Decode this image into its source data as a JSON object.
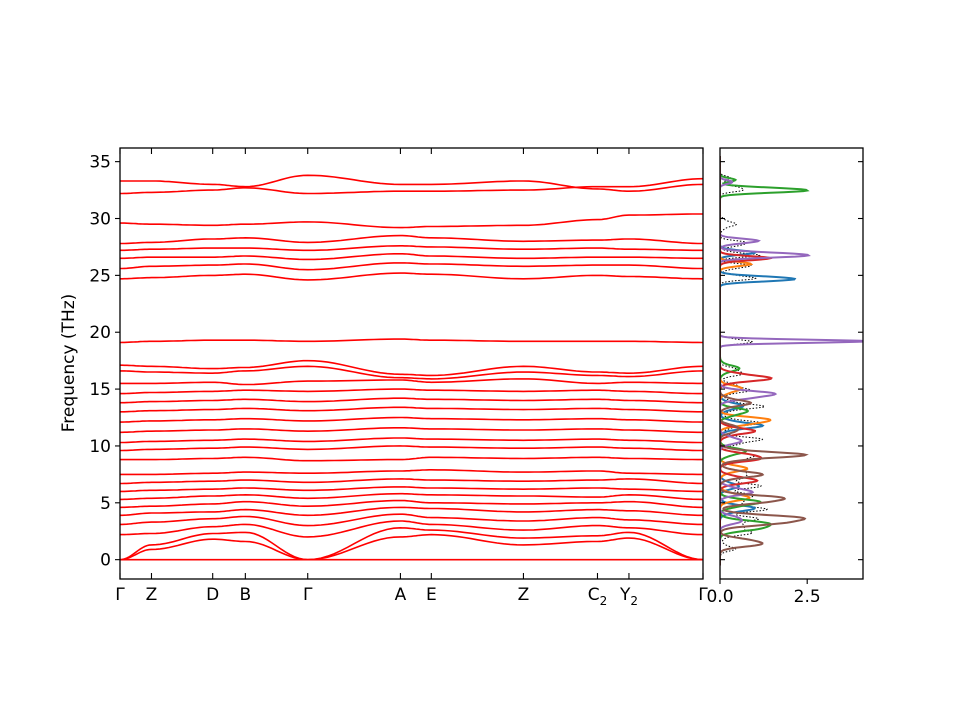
{
  "chart_data": [
    {
      "type": "line",
      "name": "phonon-band-structure",
      "title": "",
      "xlabel": "",
      "ylabel": "Frequency (THz)",
      "ylim": [
        -1.7,
        36.2
      ],
      "yticks": [
        0,
        5,
        10,
        15,
        20,
        25,
        30,
        35
      ],
      "grid": false,
      "legend": "none",
      "line_color": "#ff0000",
      "zero_line_color": "#0000ff",
      "high_symmetry_points": [
        {
          "label": "Γ",
          "sub": "",
          "x": 0.0
        },
        {
          "label": "Z",
          "sub": "",
          "x": 0.054
        },
        {
          "label": "D",
          "sub": "",
          "x": 0.159
        },
        {
          "label": "B",
          "sub": "",
          "x": 0.215
        },
        {
          "label": "Γ",
          "sub": "",
          "x": 0.322
        },
        {
          "label": "A",
          "sub": "",
          "x": 0.481
        },
        {
          "label": "E",
          "sub": "",
          "x": 0.534
        },
        {
          "label": "Z",
          "sub": "",
          "x": 0.692
        },
        {
          "label": "C",
          "sub": "2",
          "x": 0.819
        },
        {
          "label": "Y",
          "sub": "2",
          "x": 0.873
        },
        {
          "label": "Γ",
          "sub": "",
          "x": 1.0
        }
      ],
      "bands_at_nodes": [
        [
          0.0,
          0.0,
          0.0,
          0.0,
          0.0,
          0.0,
          0.0,
          0.0,
          0.0,
          0.0,
          0.0
        ],
        [
          0.0,
          0.9,
          1.8,
          1.6,
          0.0,
          2.0,
          2.2,
          1.3,
          1.6,
          1.9,
          0.0
        ],
        [
          0.0,
          1.3,
          2.3,
          2.4,
          0.0,
          2.8,
          2.6,
          1.9,
          2.1,
          2.4,
          0.0
        ],
        [
          2.2,
          2.3,
          2.9,
          3.1,
          2.0,
          3.4,
          3.1,
          2.6,
          3.0,
          2.8,
          2.2
        ],
        [
          3.1,
          3.3,
          3.6,
          3.8,
          3.0,
          4.0,
          3.7,
          3.4,
          3.7,
          3.5,
          3.1
        ],
        [
          3.9,
          4.1,
          4.2,
          4.4,
          3.9,
          4.6,
          4.5,
          4.2,
          4.4,
          4.3,
          3.9
        ],
        [
          4.6,
          4.7,
          4.9,
          5.1,
          4.7,
          5.2,
          5.0,
          4.9,
          5.0,
          5.1,
          4.6
        ],
        [
          5.3,
          5.4,
          5.6,
          5.7,
          5.4,
          5.8,
          5.7,
          5.6,
          5.5,
          5.7,
          5.3
        ],
        [
          6.0,
          6.1,
          6.2,
          6.3,
          6.1,
          6.4,
          6.3,
          6.2,
          6.3,
          6.2,
          6.0
        ],
        [
          6.7,
          6.8,
          6.9,
          7.0,
          6.8,
          7.1,
          7.0,
          6.9,
          7.0,
          7.1,
          6.7
        ],
        [
          7.5,
          7.5,
          7.6,
          7.7,
          7.6,
          7.8,
          7.9,
          7.7,
          7.8,
          7.6,
          7.5
        ],
        [
          8.8,
          8.8,
          8.9,
          9.0,
          8.7,
          8.8,
          9.0,
          8.9,
          9.0,
          8.9,
          8.8
        ],
        [
          9.6,
          9.7,
          9.8,
          9.9,
          9.7,
          10.0,
          9.9,
          9.8,
          9.9,
          9.8,
          9.6
        ],
        [
          10.3,
          10.4,
          10.5,
          10.6,
          10.4,
          10.7,
          10.6,
          10.5,
          10.6,
          10.5,
          10.3
        ],
        [
          11.2,
          11.3,
          11.4,
          11.5,
          11.3,
          11.6,
          11.5,
          11.4,
          11.5,
          11.4,
          11.2
        ],
        [
          12.1,
          12.2,
          12.3,
          12.4,
          12.2,
          12.5,
          12.4,
          12.3,
          12.4,
          12.3,
          12.1
        ],
        [
          13.0,
          13.1,
          13.2,
          13.3,
          13.1,
          13.4,
          13.3,
          13.2,
          13.3,
          13.2,
          13.0
        ],
        [
          13.8,
          13.9,
          14.0,
          14.1,
          13.9,
          14.2,
          14.1,
          14.0,
          14.1,
          14.0,
          13.8
        ],
        [
          14.6,
          14.7,
          14.8,
          14.9,
          14.8,
          15.0,
          14.9,
          14.8,
          14.9,
          14.8,
          14.6
        ],
        [
          15.5,
          15.5,
          15.6,
          15.4,
          15.7,
          15.8,
          15.6,
          15.9,
          15.5,
          15.6,
          15.5
        ],
        [
          16.6,
          16.5,
          16.4,
          16.6,
          17.0,
          16.0,
          15.9,
          16.5,
          16.2,
          16.1,
          16.6
        ],
        [
          17.1,
          17.0,
          16.8,
          16.9,
          17.5,
          16.3,
          16.2,
          17.0,
          16.5,
          16.4,
          17.0
        ],
        [
          19.1,
          19.2,
          19.3,
          19.3,
          19.2,
          19.4,
          19.3,
          19.2,
          19.2,
          19.2,
          19.1
        ],
        [
          24.7,
          24.8,
          25.0,
          25.1,
          24.6,
          25.2,
          25.1,
          24.7,
          25.0,
          24.9,
          24.7
        ],
        [
          25.6,
          25.8,
          25.9,
          26.0,
          25.5,
          26.1,
          26.0,
          25.8,
          25.9,
          25.9,
          25.6
        ],
        [
          26.5,
          26.6,
          26.6,
          26.7,
          26.4,
          26.9,
          26.7,
          26.5,
          26.6,
          26.6,
          26.5
        ],
        [
          27.2,
          27.3,
          27.4,
          27.4,
          27.2,
          27.6,
          27.5,
          27.3,
          27.4,
          27.3,
          27.2
        ],
        [
          27.8,
          27.9,
          28.2,
          28.3,
          27.9,
          28.5,
          28.3,
          28.0,
          28.1,
          28.2,
          27.8
        ],
        [
          29.6,
          29.5,
          29.4,
          29.5,
          29.7,
          29.2,
          29.3,
          29.4,
          29.9,
          30.3,
          30.4
        ],
        [
          32.2,
          32.3,
          32.5,
          32.7,
          32.2,
          32.4,
          32.4,
          32.5,
          32.8,
          32.8,
          33.5
        ],
        [
          33.3,
          33.3,
          33.0,
          32.8,
          33.8,
          33.0,
          33.0,
          33.3,
          32.6,
          32.4,
          33.0
        ]
      ]
    },
    {
      "type": "line",
      "name": "phonon-dos",
      "title": "",
      "xlabel": "",
      "ylabel": "",
      "xlim": [
        0,
        4.1
      ],
      "xticks": [
        0.0,
        2.5
      ],
      "xtick_labels": [
        "0.0",
        "2.5"
      ],
      "ylim": [
        -1.7,
        36.2
      ],
      "grid": false,
      "legend": "none",
      "total_dos_style": "dotted",
      "series": [
        {
          "color": "#000000",
          "role": "total",
          "peaks": [
            [
              1.0,
              0.4,
              0.25
            ],
            [
              2.5,
              0.9,
              0.35
            ],
            [
              3.5,
              1.0,
              0.3
            ],
            [
              4.5,
              1.2,
              0.3
            ],
            [
              5.5,
              1.0,
              0.3
            ],
            [
              6.5,
              1.0,
              0.3
            ],
            [
              7.5,
              0.9,
              0.3
            ],
            [
              9.0,
              1.0,
              0.35
            ],
            [
              10.5,
              1.1,
              0.3
            ],
            [
              12.0,
              1.0,
              0.3
            ],
            [
              13.5,
              1.1,
              0.3
            ],
            [
              15.0,
              0.8,
              0.35
            ],
            [
              16.5,
              0.7,
              0.3
            ],
            [
              19.2,
              0.9,
              0.2
            ],
            [
              24.8,
              1.0,
              0.2
            ],
            [
              25.8,
              0.9,
              0.2
            ],
            [
              26.8,
              1.0,
              0.2
            ],
            [
              27.8,
              0.9,
              0.2
            ],
            [
              29.5,
              0.4,
              0.3
            ],
            [
              32.6,
              0.8,
              0.2
            ],
            [
              33.5,
              0.3,
              0.2
            ]
          ]
        },
        {
          "color": "#1f77b4",
          "role": "projected",
          "peaks": [
            [
              4.5,
              0.9,
              0.3
            ],
            [
              6.5,
              0.5,
              0.3
            ],
            [
              11.8,
              1.1,
              0.3
            ],
            [
              13.5,
              0.6,
              0.3
            ],
            [
              24.7,
              2.4,
              0.2
            ],
            [
              27.0,
              0.9,
              0.2
            ]
          ]
        },
        {
          "color": "#ff7f0e",
          "role": "projected",
          "peaks": [
            [
              5.5,
              0.8,
              0.3
            ],
            [
              8.0,
              0.7,
              0.3
            ],
            [
              12.2,
              1.5,
              0.3
            ],
            [
              15.0,
              0.6,
              0.3
            ],
            [
              26.0,
              0.8,
              0.2
            ]
          ]
        },
        {
          "color": "#2ca02c",
          "role": "projected",
          "peaks": [
            [
              3.0,
              1.6,
              0.35
            ],
            [
              5.0,
              1.1,
              0.3
            ],
            [
              9.5,
              0.7,
              0.3
            ],
            [
              13.0,
              0.8,
              0.3
            ],
            [
              16.8,
              0.5,
              0.3
            ],
            [
              32.5,
              2.8,
              0.2
            ],
            [
              33.4,
              0.5,
              0.15
            ]
          ]
        },
        {
          "color": "#d62728",
          "role": "projected",
          "peaks": [
            [
              7.0,
              1.0,
              0.3
            ],
            [
              9.0,
              1.3,
              0.3
            ],
            [
              11.3,
              0.9,
              0.3
            ],
            [
              16.0,
              1.4,
              0.3
            ],
            [
              26.5,
              1.3,
              0.2
            ]
          ]
        },
        {
          "color": "#9467bd",
          "role": "projected",
          "peaks": [
            [
              3.5,
              0.7,
              0.3
            ],
            [
              6.0,
              0.9,
              0.3
            ],
            [
              10.5,
              0.6,
              0.3
            ],
            [
              14.5,
              1.6,
              0.3
            ],
            [
              19.2,
              3.8,
              0.15
            ],
            [
              26.8,
              2.8,
              0.2
            ],
            [
              28.0,
              1.1,
              0.2
            ],
            [
              33.2,
              0.4,
              0.15
            ]
          ]
        },
        {
          "color": "#8c564b",
          "role": "projected",
          "peaks": [
            [
              1.5,
              1.3,
              0.3
            ],
            [
              3.5,
              2.6,
              0.35
            ],
            [
              5.3,
              2.0,
              0.3
            ],
            [
              7.5,
              1.1,
              0.3
            ],
            [
              9.2,
              2.2,
              0.3
            ],
            [
              11.5,
              0.6,
              0.3
            ],
            [
              13.8,
              0.8,
              0.3
            ]
          ]
        }
      ]
    }
  ]
}
